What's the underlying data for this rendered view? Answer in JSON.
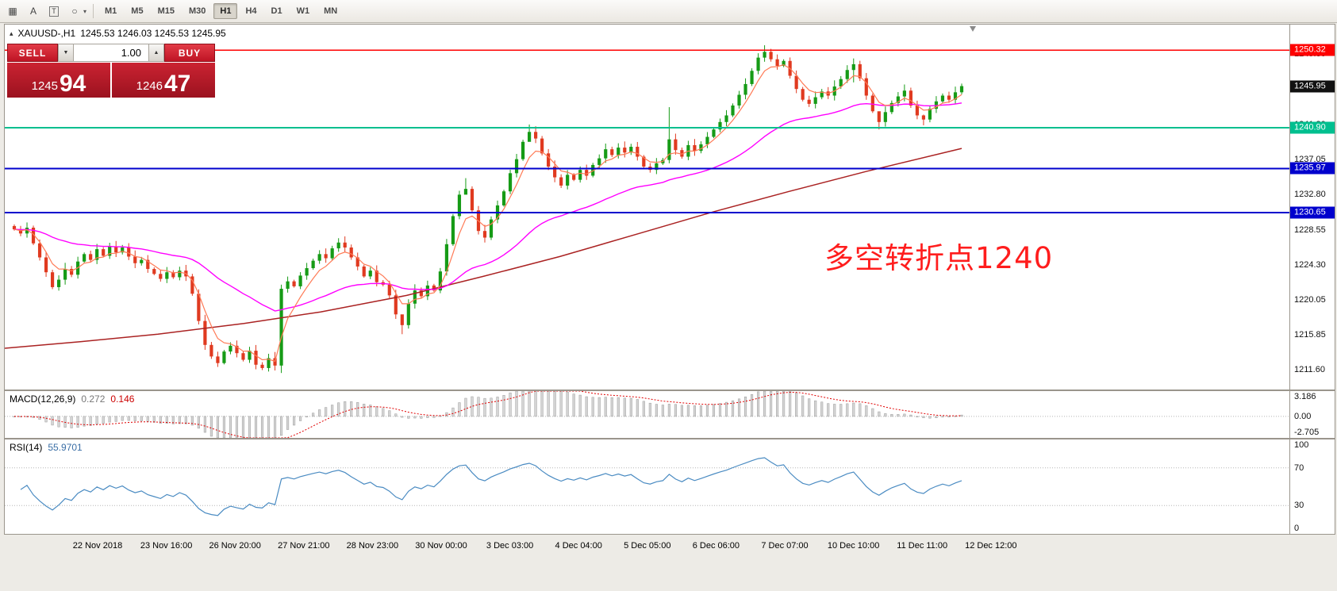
{
  "toolbar": {
    "tools": [
      {
        "name": "crosshair-tool",
        "glyph": "▦"
      },
      {
        "name": "label-tool",
        "glyph": "A"
      },
      {
        "name": "textbox-tool",
        "glyph": "T"
      },
      {
        "name": "shapes-tool",
        "glyph": "○"
      }
    ],
    "shapes_caret": "▾",
    "timeframes": [
      {
        "label": "M1"
      },
      {
        "label": "M5"
      },
      {
        "label": "M15"
      },
      {
        "label": "M30"
      },
      {
        "label": "H1",
        "active": true
      },
      {
        "label": "H4"
      },
      {
        "label": "D1"
      },
      {
        "label": "W1"
      },
      {
        "label": "MN"
      }
    ]
  },
  "chart": {
    "marker": "▴",
    "symbol": "XAUUSD-,H1",
    "ohlc": "1245.53 1246.03 1245.53 1245.95",
    "annotation": "多空转折点1240"
  },
  "trade": {
    "sell_label": "SELL",
    "buy_label": "BUY",
    "volume": "1.00",
    "spin_down": "▼",
    "spin_up": "▲",
    "sell_price_main": "1245",
    "sell_price_big": "94",
    "buy_price_main": "1246",
    "buy_price_big": "47"
  },
  "levels": [
    {
      "label": "1250.32",
      "value": 1250.32,
      "color": "#ff0000",
      "weight": 1.4
    },
    {
      "label": "1245.95",
      "value": 1245.95,
      "color": "#111111",
      "weight": 0,
      "current": true
    },
    {
      "label": "1240.90",
      "value": 1240.9,
      "color": "#00bf8f",
      "weight": 2
    },
    {
      "label": "1235.97",
      "value": 1235.97,
      "color": "#0000cd",
      "weight": 2
    },
    {
      "label": "1230.65",
      "value": 1230.65,
      "color": "#0000cd",
      "weight": 2
    }
  ],
  "price_axis": {
    "ticks": [
      {
        "label": "1249.80",
        "value": 1249.8
      },
      {
        "label": "1245.55",
        "value": 1245.55
      },
      {
        "label": "1241.30",
        "value": 1241.3
      },
      {
        "label": "1237.05",
        "value": 1237.05
      },
      {
        "label": "1232.80",
        "value": 1232.8
      },
      {
        "label": "1228.55",
        "value": 1228.55
      },
      {
        "label": "1224.30",
        "value": 1224.3
      },
      {
        "label": "1220.05",
        "value": 1220.05
      },
      {
        "label": "1215.85",
        "value": 1215.85
      },
      {
        "label": "1211.60",
        "value": 1211.6
      }
    ]
  },
  "macd": {
    "name": "MACD(12,26,9)",
    "value_main": "0.272",
    "value_signal": "0.146",
    "max": 3.186,
    "min": -2.705,
    "axis": [
      {
        "label": "3.186",
        "value": 3.186
      },
      {
        "label": "0.00",
        "value": 0
      },
      {
        "label": "-2.705",
        "value": -2.705
      }
    ]
  },
  "rsi": {
    "name": "RSI(14)",
    "value": "55.9701",
    "levels": [
      70,
      30
    ],
    "axis": [
      {
        "label": "100",
        "value": 100
      },
      {
        "label": "70",
        "value": 70
      },
      {
        "label": "30",
        "value": 30
      },
      {
        "label": "0",
        "value": 0
      }
    ]
  },
  "time_axis": {
    "labels": [
      "22 Nov 2018",
      "23 Nov 16:00",
      "26 Nov 20:00",
      "27 Nov 21:00",
      "28 Nov 23:00",
      "30 Nov 00:00",
      "3 Dec 03:00",
      "4 Dec 04:00",
      "5 Dec 05:00",
      "6 Dec 06:00",
      "7 Dec 07:00",
      "10 Dec 10:00",
      "11 Dec 11:00",
      "12 Dec 12:00"
    ]
  },
  "chart_data": {
    "type": "candlestick",
    "symbol": "XAUUSD",
    "timeframe": "H1",
    "price_max": 1253.4,
    "price_min": 1209.2,
    "ma_fast": 5,
    "ma_medium": 34,
    "closes": [
      1228.6,
      1228.1,
      1228.8,
      1226.9,
      1225.2,
      1223.4,
      1221.6,
      1222.5,
      1223.8,
      1223.1,
      1224.7,
      1225.6,
      1224.9,
      1226.2,
      1225.4,
      1226.5,
      1225.8,
      1226.4,
      1225.3,
      1224.5,
      1224.9,
      1223.8,
      1223.2,
      1222.6,
      1223.4,
      1222.8,
      1223.6,
      1222.9,
      1220.8,
      1217.5,
      1214.6,
      1213.2,
      1212.4,
      1213.8,
      1214.5,
      1213.6,
      1212.8,
      1213.9,
      1212.2,
      1211.8,
      1213.0,
      1212.1,
      1221.4,
      1222.3,
      1221.7,
      1223.0,
      1223.9,
      1224.8,
      1225.6,
      1225.1,
      1226.3,
      1227.0,
      1226.4,
      1225.2,
      1224.1,
      1222.9,
      1223.6,
      1222.2,
      1221.9,
      1220.6,
      1218.3,
      1217.0,
      1219.6,
      1221.2,
      1220.5,
      1221.8,
      1221.2,
      1223.5,
      1226.8,
      1230.2,
      1232.8,
      1233.5,
      1230.9,
      1228.4,
      1227.6,
      1229.8,
      1231.5,
      1233.2,
      1235.4,
      1237.1,
      1239.2,
      1240.4,
      1239.6,
      1237.8,
      1236.2,
      1234.9,
      1233.9,
      1235.2,
      1234.6,
      1235.8,
      1235.1,
      1236.4,
      1237.2,
      1238.3,
      1237.6,
      1238.5,
      1237.9,
      1238.6,
      1237.4,
      1236.2,
      1235.8,
      1236.6,
      1237.0,
      1239.5,
      1238.2,
      1237.4,
      1238.8,
      1238.1,
      1238.9,
      1239.8,
      1240.7,
      1241.6,
      1242.4,
      1243.6,
      1244.9,
      1246.2,
      1247.8,
      1249.4,
      1250.1,
      1249.2,
      1248.4,
      1249.0,
      1247.2,
      1245.6,
      1244.3,
      1243.8,
      1244.6,
      1245.3,
      1244.8,
      1245.9,
      1246.8,
      1247.9,
      1248.6,
      1246.9,
      1244.8,
      1242.9,
      1241.6,
      1242.8,
      1243.9,
      1244.7,
      1245.4,
      1243.6,
      1242.4,
      1241.9,
      1243.2,
      1244.1,
      1244.8,
      1244.3,
      1245.2,
      1245.95
    ],
    "wick_overrides": {
      "42": [
        1221.9,
        1211.2
      ],
      "61": [
        1217.3,
        1215.9
      ],
      "71": [
        1234.8,
        1232.9
      ],
      "81": [
        1241.3,
        1239.6
      ],
      "103": [
        1243.4,
        1236.6
      ],
      "118": [
        1250.9,
        1248.9
      ],
      "132": [
        1249.3,
        1246.4
      ],
      "136": [
        1242.1,
        1240.7
      ],
      "143": [
        1242.5,
        1241.2
      ]
    },
    "slow_ma": [
      [
        0,
        1214.2
      ],
      [
        0.08,
        1215.0
      ],
      [
        0.16,
        1215.9
      ],
      [
        0.25,
        1217.2
      ],
      [
        0.33,
        1218.6
      ],
      [
        0.42,
        1220.6
      ],
      [
        0.5,
        1222.9
      ],
      [
        0.58,
        1225.3
      ],
      [
        0.66,
        1228.0
      ],
      [
        0.74,
        1230.7
      ],
      [
        0.82,
        1233.2
      ],
      [
        0.9,
        1235.6
      ],
      [
        1,
        1238.4
      ]
    ]
  },
  "colors": {
    "up": "#169b16",
    "down": "#e03a20",
    "fast_ma": "#ff7a55",
    "medium_ma": "#ff00ff",
    "slow_ma": "#aa2222",
    "macd_hist": "#d6d6d6",
    "macd_hist_border": "#9a9a9a",
    "macd_signal": "#e00000",
    "rsi": "#4a8bc2",
    "annotation": "#ff1d1d",
    "level_grid": "#b5b5b5"
  }
}
